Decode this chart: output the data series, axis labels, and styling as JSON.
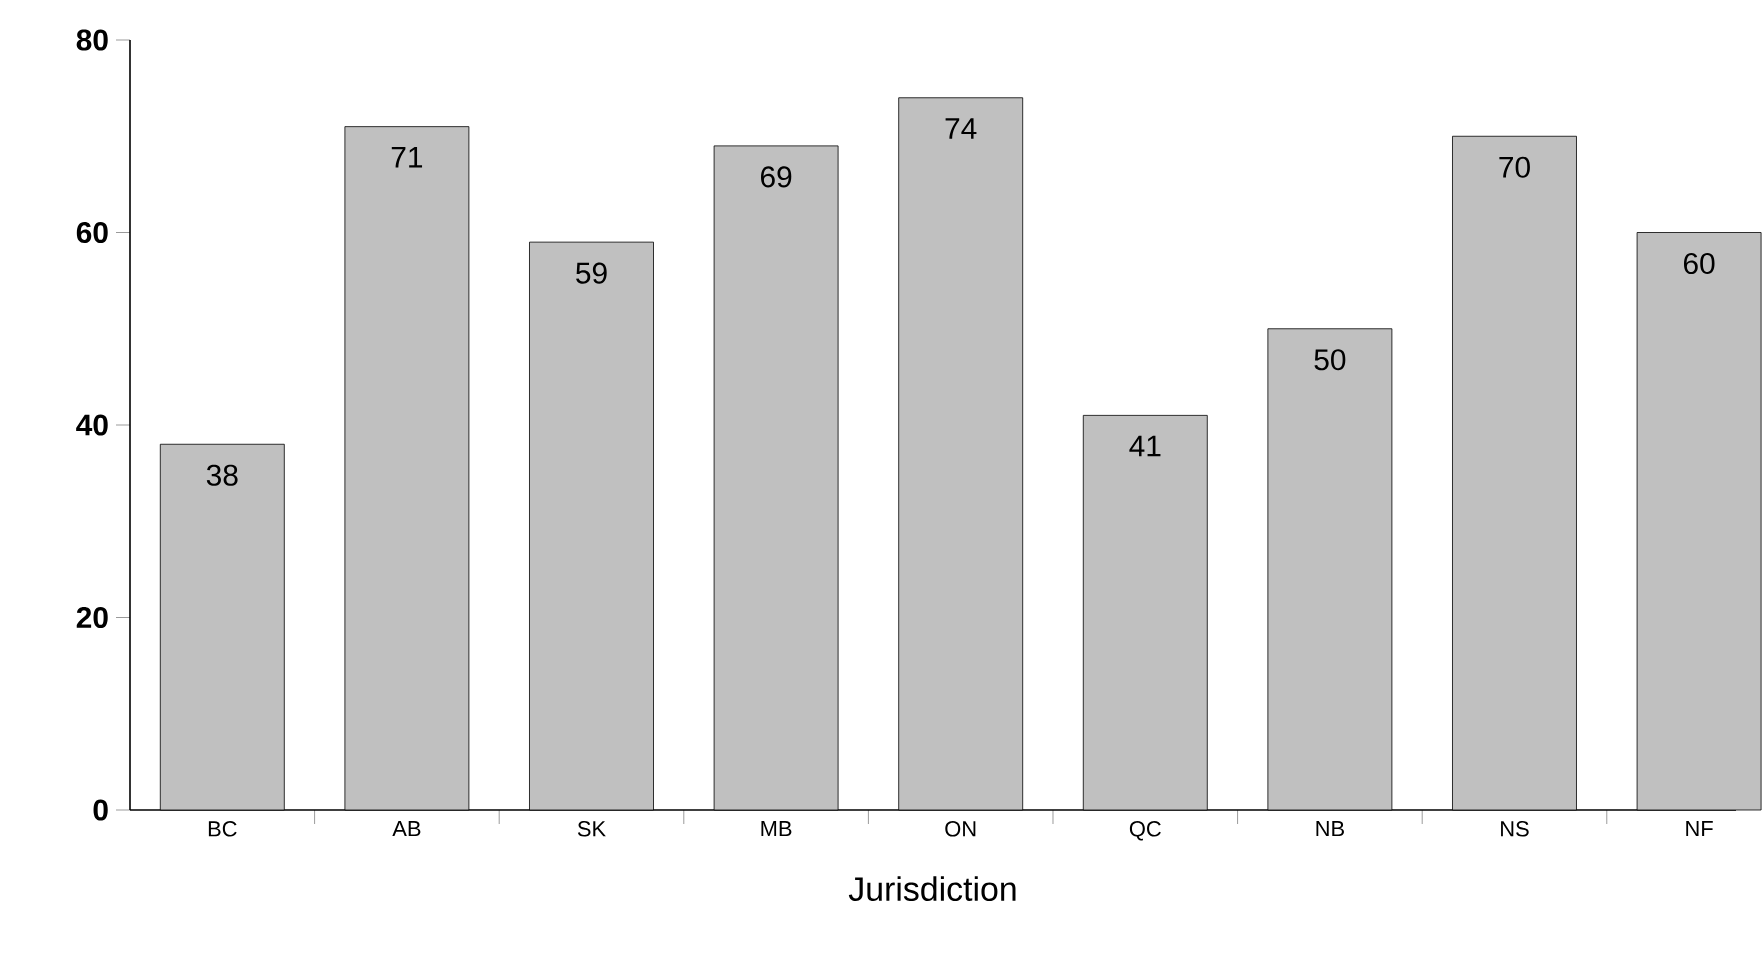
{
  "chart_data": {
    "type": "bar",
    "xlabel": "Jurisdiction",
    "categories": [
      "BC",
      "AB",
      "SK",
      "MB",
      "ON",
      "QC",
      "NB",
      "NS",
      "NF"
    ],
    "values": [
      38,
      71,
      59,
      69,
      74,
      41,
      50,
      70,
      60
    ],
    "color": "#c0c0c0",
    "ylim": [
      0,
      80
    ],
    "yticks": [
      0,
      20,
      40,
      60,
      80
    ],
    "data_labels": true
  }
}
